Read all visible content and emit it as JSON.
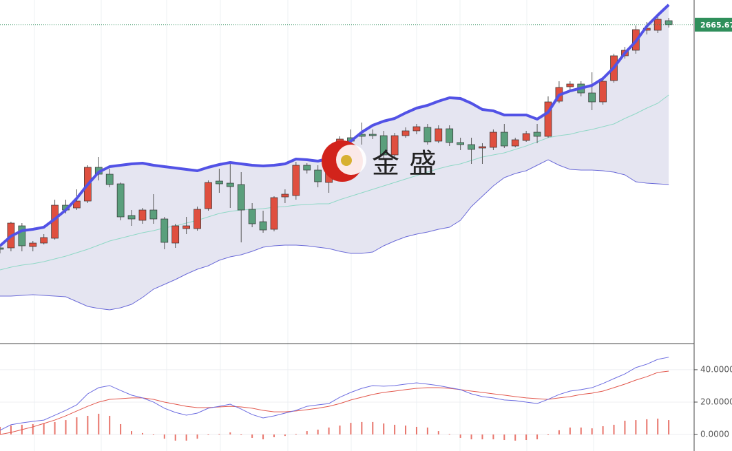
{
  "chart_data": [
    {
      "type": "candlestick",
      "open": [
        2536,
        2536,
        2548.8,
        2536.8,
        2538.8,
        2541.6,
        2560.8,
        2559.2,
        2563.2,
        2582.8,
        2578.8,
        2573.2,
        2554.8,
        2552,
        2558,
        2552.8,
        2538.8,
        2547.2,
        2547.2,
        2558.8,
        2574.8,
        2573.6,
        2572.8,
        2558.4,
        2551.2,
        2546.8,
        2565.6,
        2566.4,
        2584,
        2581.2,
        2574,
        2585.6,
        2600,
        2602,
        2602,
        2601.2,
        2590,
        2601.2,
        2604,
        2606,
        2598,
        2605.2,
        2597.2,
        2596,
        2594,
        2594.4,
        2603.2,
        2595.2,
        2598.4,
        2603.2,
        2600.8,
        2621.2,
        2629.6,
        2631.2,
        2626,
        2620.8,
        2633.2,
        2647.6,
        2650.8,
        2662.4,
        2662.4,
        2668
      ],
      "high": [
        2538,
        2551.2,
        2550.4,
        2540,
        2544,
        2564,
        2564,
        2570,
        2584,
        2588.8,
        2582,
        2574,
        2558,
        2559.2,
        2567.2,
        2554,
        2550,
        2554,
        2560,
        2575.2,
        2582,
        2584.8,
        2580,
        2562,
        2557.6,
        2566,
        2570,
        2586,
        2585.2,
        2584,
        2586,
        2600.8,
        2604.8,
        2608.8,
        2604.8,
        2604,
        2602.8,
        2606,
        2608,
        2608,
        2607.2,
        2607.2,
        2600,
        2600,
        2596.8,
        2604.8,
        2608,
        2600,
        2604,
        2608,
        2624,
        2632.8,
        2632.8,
        2632.8,
        2638,
        2635.2,
        2648.8,
        2652.8,
        2665.2,
        2667.2,
        2671.2,
        2669.6
      ],
      "low": [
        2532.8,
        2534,
        2534,
        2534,
        2538,
        2540.8,
        2556,
        2558,
        2562,
        2575.2,
        2571.2,
        2552,
        2548.8,
        2550,
        2550,
        2535.2,
        2536,
        2544,
        2546,
        2557.6,
        2568,
        2559.2,
        2539.2,
        2548,
        2544.8,
        2545.6,
        2562,
        2564,
        2579.2,
        2571.2,
        2568,
        2584,
        2594,
        2596,
        2599.2,
        2587.2,
        2588.8,
        2600,
        2602,
        2596,
        2596.8,
        2595.2,
        2592.8,
        2584.8,
        2584.8,
        2592.8,
        2594,
        2594.4,
        2597.6,
        2596.8,
        2600,
        2620,
        2628,
        2624,
        2616,
        2619.2,
        2632,
        2646,
        2648.8,
        2660,
        2660.8,
        2664
      ],
      "close": [
        2535.2,
        2550.4,
        2537.2,
        2538.8,
        2542,
        2560.8,
        2558,
        2563.2,
        2582.8,
        2578.8,
        2572.8,
        2554,
        2552.8,
        2558,
        2552.8,
        2539.2,
        2548.8,
        2548.8,
        2558.4,
        2574,
        2573.2,
        2571.6,
        2558,
        2550,
        2546.4,
        2565.2,
        2567.2,
        2584,
        2581.2,
        2574.4,
        2582,
        2599.2,
        2598,
        2600.8,
        2601.2,
        2590,
        2601.2,
        2604,
        2606.4,
        2597.6,
        2605.2,
        2597.2,
        2596,
        2593.2,
        2594.8,
        2603.2,
        2595.2,
        2598.8,
        2602.4,
        2600.8,
        2620.8,
        2629.2,
        2631.2,
        2626,
        2620.8,
        2632.8,
        2647.6,
        2650.8,
        2662.8,
        2663.6,
        2668.8,
        2665.67
      ],
      "up_color": "#df4f3f",
      "down_color": "#5a9f7c",
      "bands": {
        "upper": [
          2537.2,
          2542.8,
          2546,
          2546.8,
          2548,
          2552.8,
          2558,
          2564.8,
          2572.8,
          2580,
          2583.2,
          2584,
          2584.8,
          2585.2,
          2584,
          2583.2,
          2582.4,
          2581.6,
          2580.8,
          2582.8,
          2584.4,
          2585.6,
          2584.8,
          2584,
          2583.6,
          2584,
          2584.8,
          2587.6,
          2587.2,
          2586.4,
          2588,
          2591.2,
          2598,
          2603.2,
          2607.2,
          2609.6,
          2611.2,
          2614.4,
          2617.2,
          2618.8,
          2621.2,
          2623.2,
          2622.8,
          2620,
          2616.4,
          2615.6,
          2613.2,
          2613.2,
          2613.2,
          2610.8,
          2614.8,
          2624.8,
          2627.2,
          2628.8,
          2630.4,
          2634.4,
          2640.8,
          2649.2,
          2656,
          2664.8,
          2671.2,
          2677.2
        ],
        "middle": [
          2523.2,
          2524.8,
          2526,
          2526.8,
          2528,
          2529.6,
          2531.2,
          2533.2,
          2535.2,
          2537.6,
          2540,
          2541.6,
          2543.2,
          2544.8,
          2546,
          2547.6,
          2548.8,
          2550.4,
          2552,
          2554,
          2556,
          2557.2,
          2558,
          2558.4,
          2558.8,
          2559.6,
          2560,
          2560.8,
          2561.2,
          2561.6,
          2561.6,
          2564,
          2566,
          2568,
          2570,
          2572,
          2574,
          2576,
          2578,
          2580,
          2582,
          2583.6,
          2584.8,
          2586.8,
          2588.8,
          2590,
          2591.2,
          2593.2,
          2595.2,
          2597.6,
          2600,
          2601.2,
          2602,
          2603.6,
          2604.8,
          2606.4,
          2608,
          2611.2,
          2614,
          2617.2,
          2620,
          2624.8
        ],
        "lower": [
          2508,
          2508,
          2508.4,
          2508.8,
          2508.4,
          2508,
          2507.6,
          2504.8,
          2502,
          2500.8,
          2500,
          2501.2,
          2503.2,
          2507.2,
          2512,
          2514.8,
          2517.6,
          2520.8,
          2523.6,
          2525.6,
          2528.8,
          2530.8,
          2532,
          2534,
          2536.4,
          2537.2,
          2537.6,
          2537.6,
          2537.2,
          2536.4,
          2535.6,
          2534,
          2532.8,
          2532.8,
          2533.6,
          2537.2,
          2540,
          2542.4,
          2544,
          2545.2,
          2546.8,
          2548,
          2552,
          2560,
          2566,
          2572,
          2576.8,
          2579.2,
          2580.8,
          2584,
          2587.2,
          2584,
          2581.6,
          2581.2,
          2581.2,
          2580.8,
          2580,
          2578.4,
          2574.4,
          2573.6,
          2573.2,
          2572.8
        ],
        "upper_color": "#5252e6",
        "middle_color": "#8fd8c6",
        "lower_color": "#6a6ad8",
        "fill": "#e5e5f1"
      },
      "ylim": [
        2480,
        2680
      ],
      "last_price": 2665.67,
      "last_price_color": "#2f8f5b",
      "watermark": "金盛"
    },
    {
      "type": "macd",
      "dif": [
        2.6,
        6.0,
        7.2,
        8.1,
        8.9,
        11.9,
        14.9,
        18.3,
        25.1,
        28.9,
        30.2,
        27.2,
        24.3,
        22.6,
        20.0,
        16.2,
        13.6,
        11.9,
        13.2,
        16.2,
        17.4,
        18.7,
        15.7,
        12.3,
        10.2,
        11.5,
        13.2,
        14.9,
        17.4,
        18.3,
        19.1,
        23.0,
        26.0,
        28.5,
        30.2,
        29.8,
        30.2,
        31.1,
        31.9,
        31.1,
        30.2,
        28.9,
        27.7,
        25.1,
        23.4,
        22.6,
        21.3,
        20.9,
        20.0,
        19.1,
        21.7,
        24.7,
        26.8,
        27.7,
        28.9,
        31.5,
        34.5,
        37.4,
        41.3,
        43.4,
        46.4,
        47.7
      ],
      "dea": [
        0,
        1.3,
        3.0,
        4.7,
        6.8,
        8.9,
        11.5,
        14.5,
        17.4,
        20.0,
        21.7,
        22.1,
        22.6,
        22.6,
        21.7,
        20.0,
        18.7,
        17.4,
        16.6,
        16.6,
        17.0,
        17.4,
        17.0,
        16.2,
        14.9,
        14.0,
        14.0,
        14.5,
        15.3,
        16.2,
        17.4,
        19.1,
        21.3,
        23.0,
        24.7,
        26.0,
        26.8,
        27.7,
        28.5,
        28.9,
        28.9,
        28.5,
        27.7,
        26.8,
        26.0,
        25.1,
        24.3,
        23.4,
        22.6,
        22.1,
        21.7,
        22.6,
        23.4,
        24.7,
        25.5,
        26.8,
        28.9,
        31.1,
        33.6,
        35.7,
        38.3,
        39.1
      ],
      "hist": [
        4.7,
        5.5,
        6.0,
        6.4,
        6.8,
        7.7,
        8.9,
        10.6,
        11.5,
        12.8,
        11.5,
        6.4,
        2.1,
        0.9,
        -0.4,
        -2.6,
        -3.8,
        -3.8,
        -2.6,
        -0.4,
        0.4,
        1.3,
        -0.4,
        -2.1,
        -3.0,
        -1.7,
        -0.9,
        0.4,
        2.1,
        3.0,
        4.3,
        5.5,
        7.2,
        7.7,
        7.7,
        6.8,
        6.0,
        5.5,
        4.7,
        4.3,
        2.1,
        0.4,
        -2.1,
        -3.0,
        -3.0,
        -3.0,
        -3.4,
        -3.8,
        -3.4,
        -3.0,
        -0.4,
        2.6,
        4.3,
        4.3,
        3.8,
        5.1,
        6.0,
        8.5,
        8.9,
        9.4,
        9.8,
        8.9
      ],
      "dif_color": "#6b6be0",
      "dea_color": "#e2574c",
      "hist_color": "#e8746a",
      "ylim": [
        -10.2,
        55.7
      ],
      "yticks": [
        {
          "value": 0,
          "label": "0.0000"
        },
        {
          "value": 20,
          "label": "20.0000"
        },
        {
          "value": 40,
          "label": "40.0000"
        }
      ],
      "grid": true
    }
  ]
}
